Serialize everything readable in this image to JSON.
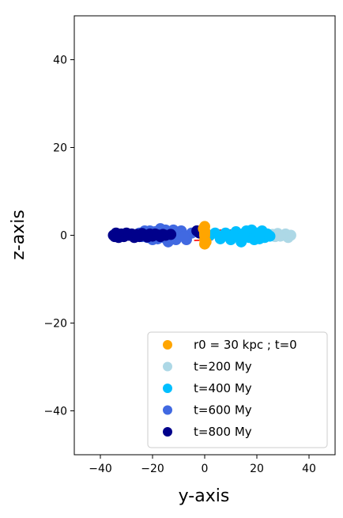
{
  "chart_data": {
    "type": "scatter",
    "xlabel": "y-axis",
    "ylabel": "z-axis",
    "xlim": [
      -50,
      50
    ],
    "ylim": [
      -50,
      50
    ],
    "xticks": [
      -40,
      -20,
      0,
      20,
      40
    ],
    "yticks": [
      -40,
      -20,
      0,
      20,
      40
    ],
    "xtick_labels": [
      "−40",
      "−20",
      "0",
      "20",
      "40"
    ],
    "ytick_labels": [
      "−40",
      "−20",
      "0",
      "20",
      "40"
    ],
    "grid": false,
    "legend_position": "lower-right",
    "series": [
      {
        "name": "r0 = 30 kpc ; t=0",
        "color": "#ffa500",
        "points": [
          [
            0,
            2
          ],
          [
            0,
            1
          ],
          [
            0,
            0
          ],
          [
            0,
            -1
          ],
          [
            0,
            -2
          ],
          [
            -0.5,
            1.5
          ],
          [
            0.5,
            -1.5
          ],
          [
            0,
            0.5
          ]
        ]
      },
      {
        "name": "t=200 My",
        "color": "#add8e6",
        "points": [
          [
            33,
            0
          ],
          [
            32,
            -0.5
          ],
          [
            31,
            0.3
          ],
          [
            30,
            0
          ],
          [
            29,
            -0.2
          ],
          [
            28,
            0.4
          ],
          [
            27,
            -0.3
          ],
          [
            26,
            0.2
          ]
        ]
      },
      {
        "name": "t=400 My",
        "color": "#00bfff",
        "points": [
          [
            2,
            0
          ],
          [
            4,
            0.5
          ],
          [
            6,
            -0.8
          ],
          [
            8,
            0.5
          ],
          [
            10,
            -1
          ],
          [
            12,
            0.8
          ],
          [
            14,
            -1.5
          ],
          [
            16,
            1
          ],
          [
            17,
            -0.5
          ],
          [
            18,
            1.2
          ],
          [
            19,
            -1
          ],
          [
            20,
            0.5
          ],
          [
            21,
            -0.8
          ],
          [
            22,
            1
          ],
          [
            23,
            -0.5
          ],
          [
            24,
            0.3
          ],
          [
            25,
            -0.2
          ],
          [
            11,
            0.2
          ],
          [
            13,
            -0.3
          ],
          [
            15,
            0.4
          ]
        ]
      },
      {
        "name": "t=600 My",
        "color": "#4169e1",
        "points": [
          [
            -3,
            1
          ],
          [
            -5,
            0.5
          ],
          [
            -7,
            -1
          ],
          [
            -9,
            1
          ],
          [
            -11,
            -1
          ],
          [
            -12,
            1.2
          ],
          [
            -13,
            0.3
          ],
          [
            -14,
            -1.5
          ],
          [
            -15,
            1.2
          ],
          [
            -16,
            -0.5
          ],
          [
            -17,
            1.5
          ],
          [
            -18,
            -0.8
          ],
          [
            -19,
            0.8
          ],
          [
            -20,
            -1
          ],
          [
            -21,
            1
          ],
          [
            -22,
            -0.5
          ],
          [
            -23,
            1
          ],
          [
            -24,
            -0.3
          ],
          [
            -25,
            0.5
          ],
          [
            -26,
            0
          ],
          [
            -10,
            0.2
          ],
          [
            -8,
            -0.3
          ],
          [
            -15.5,
            -0.2
          ]
        ]
      },
      {
        "name": "t=800 My",
        "color": "#00008b",
        "points": [
          [
            -35,
            0
          ],
          [
            -34,
            0.5
          ],
          [
            -33,
            -0.5
          ],
          [
            -32,
            0.3
          ],
          [
            -31,
            -0.3
          ],
          [
            -30,
            0.5
          ],
          [
            -29,
            0
          ],
          [
            -28,
            0.3
          ],
          [
            -27,
            -0.5
          ],
          [
            -26,
            0.2
          ],
          [
            -25,
            -0.3
          ],
          [
            -24,
            0.4
          ],
          [
            -23,
            0.1
          ],
          [
            -22,
            -0.4
          ],
          [
            -21,
            0.3
          ],
          [
            -20,
            -0.2
          ],
          [
            -19,
            0.3
          ],
          [
            -18,
            0.1
          ],
          [
            -17,
            -0.3
          ],
          [
            -16,
            0.2
          ],
          [
            -15,
            0
          ],
          [
            -13,
            0.2
          ],
          [
            -3,
            1
          ],
          [
            -2,
            0.5
          ],
          [
            -34.5,
            -0.3
          ]
        ]
      }
    ],
    "orbit": {
      "color": "#ff0000",
      "style": "dash-dot",
      "cx": 1,
      "cy": 0,
      "rx": 31,
      "ry": 1.1,
      "tilt": -1.8
    }
  }
}
